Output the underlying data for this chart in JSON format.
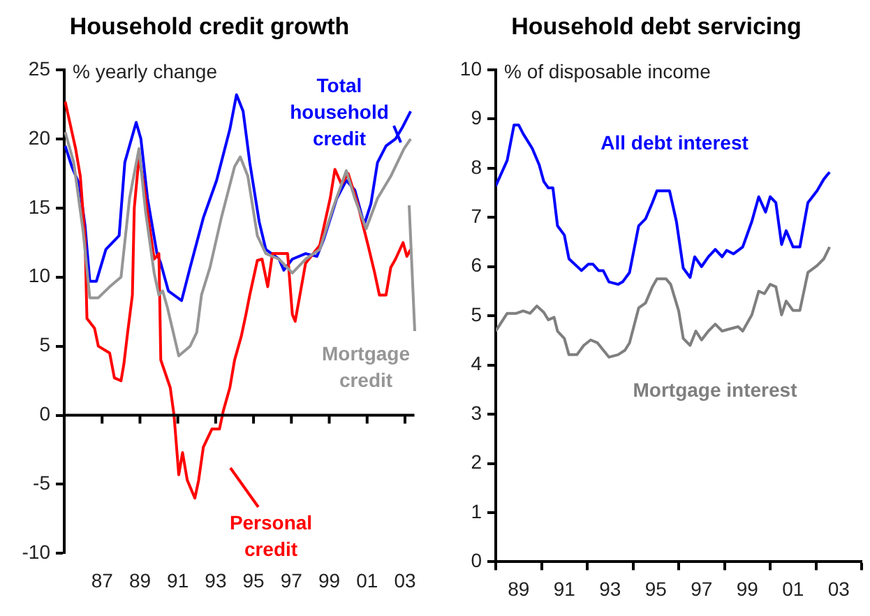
{
  "chart_data": [
    {
      "type": "line",
      "title": "Household credit growth",
      "ylabel": "% yearly change",
      "xlim": [
        1985,
        2003.5
      ],
      "ylim": [
        -10,
        25
      ],
      "yticks": [
        -10,
        -5,
        0,
        5,
        10,
        15,
        20,
        25
      ],
      "xticks": [
        {
          "value": 1987,
          "label": "87"
        },
        {
          "value": 1989,
          "label": "89"
        },
        {
          "value": 1991,
          "label": "91"
        },
        {
          "value": 1993,
          "label": "93"
        },
        {
          "value": 1995,
          "label": "95"
        },
        {
          "value": 1997,
          "label": "97"
        },
        {
          "value": 1999,
          "label": "99"
        },
        {
          "value": 2001,
          "label": "01"
        },
        {
          "value": 2003,
          "label": "03"
        }
      ],
      "grid": false,
      "ref_lines": [
        {
          "axis": "y",
          "value": 0,
          "color": "#000000"
        }
      ],
      "series": [
        {
          "name": "Mortgage credit",
          "color": "#969696",
          "x": [
            1985.05,
            1985.5,
            1986,
            1986.35,
            1986.8,
            1987.4,
            1988,
            1988.45,
            1988.95,
            1989.3,
            1989.75,
            1990,
            1990.2,
            1990.45,
            1991.05,
            1991.65,
            1992,
            1992.25,
            1992.7,
            1993.3,
            1994,
            1994.3,
            1994.7,
            1995.2,
            1995.65,
            1996.35,
            1997.05,
            1997.75,
            1998.5,
            1999.2,
            1999.9,
            2000.35,
            2000.95,
            2001.55,
            2002.25,
            2002.95,
            2003.3
          ],
          "values": [
            20.5,
            18.3,
            13.3,
            8.5,
            8.5,
            9.3,
            10,
            15.7,
            19.3,
            14.7,
            10.3,
            8.7,
            9,
            7.8,
            4.3,
            5,
            6,
            8.7,
            10.7,
            14.3,
            18,
            18.7,
            17.3,
            13,
            11.7,
            11.3,
            10.3,
            11.3,
            12,
            15,
            17.7,
            15.7,
            13.5,
            15.7,
            17.3,
            19.3,
            20
          ]
        },
        {
          "name": "Personal credit",
          "color": "#ff0000",
          "x": [
            1985.05,
            1985.6,
            1985.85,
            1986.1,
            1986.2,
            1986.6,
            1986.8,
            1987.4,
            1987.65,
            1988,
            1988.15,
            1988.35,
            1988.6,
            1988.7,
            1988.95,
            1989.2,
            1989.5,
            1989.75,
            1990,
            1990.05,
            1990.1,
            1990.6,
            1990.8,
            1991.05,
            1991.25,
            1991.5,
            1991.9,
            1992.1,
            1992.35,
            1992.8,
            1993.2,
            1993.4,
            1993.75,
            1994,
            1994.35,
            1994.6,
            1994.8,
            1995.2,
            1995.45,
            1995.75,
            1996,
            1996.8,
            1997.05,
            1997.2,
            1997.45,
            1997.75,
            1998.5,
            1999.05,
            1999.3,
            1999.65,
            2000,
            2000.5,
            2001.05,
            2001.4,
            2001.65,
            2002,
            2002.25,
            2002.5,
            2002.9,
            2003.1,
            2003.3
          ],
          "values": [
            22.7,
            19.3,
            17.3,
            12.7,
            7,
            6.3,
            5,
            4.5,
            2.7,
            2.5,
            3.7,
            6,
            8.7,
            15,
            18.7,
            16.7,
            13.7,
            11.3,
            11.7,
            8,
            4,
            2,
            0,
            -4.3,
            -2.7,
            -4.7,
            -6,
            -4.7,
            -2.3,
            -1,
            -1,
            0.3,
            2,
            4,
            5.7,
            7.3,
            8.7,
            11.2,
            11.3,
            9.3,
            11.7,
            11.7,
            7.3,
            6.8,
            8.7,
            11,
            12.3,
            15.7,
            17.8,
            16.7,
            17.5,
            15.3,
            12.3,
            10.3,
            8.7,
            8.7,
            10.7,
            11.3,
            12.5,
            11.5,
            12
          ]
        },
        {
          "name": "Total household credit",
          "color": "#0000ff",
          "x": [
            1985.05,
            1985.4,
            1985.8,
            1986.1,
            1986.35,
            1986.7,
            1987.2,
            1987.9,
            1988.2,
            1988.8,
            1989.05,
            1989.4,
            1989.9,
            1990.1,
            1990.5,
            1991.2,
            1991.65,
            1992.35,
            1993.05,
            1993.75,
            1994.1,
            1994.45,
            1994.8,
            1995.3,
            1995.65,
            1996.35,
            1996.6,
            1997.05,
            1997.75,
            1998.35,
            1998.7,
            1999.4,
            1999.9,
            2000.35,
            2000.85,
            2001.2,
            2001.55,
            2002,
            2002.5,
            2002.85,
            2003.3
          ],
          "values": [
            19.5,
            18,
            16.7,
            13.7,
            9.7,
            9.7,
            12,
            13,
            18.3,
            21.2,
            20,
            15.7,
            11.7,
            11,
            9,
            8.3,
            10.7,
            14.3,
            17,
            20.7,
            23.2,
            22,
            18.3,
            14,
            12,
            11.3,
            10.5,
            11.3,
            11.7,
            11.5,
            12.7,
            15.7,
            17,
            16.3,
            13.8,
            15.3,
            18.3,
            19.5,
            20,
            20.8,
            22
          ]
        }
      ]
    },
    {
      "type": "line",
      "title": "Household debt servicing",
      "ylabel": "% of disposable income",
      "xlim": [
        1988,
        2004
      ],
      "ylim": [
        0,
        10
      ],
      "yticks": [
        0,
        1,
        2,
        3,
        4,
        5,
        6,
        7,
        8,
        9,
        10
      ],
      "xticks": [
        {
          "value": 1988,
          "label": null
        },
        {
          "value": 1989,
          "label": "89"
        },
        {
          "value": 1990,
          "label": null
        },
        {
          "value": 1991,
          "label": "91"
        },
        {
          "value": 1992,
          "label": null
        },
        {
          "value": 1993,
          "label": "93"
        },
        {
          "value": 1994,
          "label": null
        },
        {
          "value": 1995,
          "label": "95"
        },
        {
          "value": 1996,
          "label": null
        },
        {
          "value": 1997,
          "label": "97"
        },
        {
          "value": 1998,
          "label": null
        },
        {
          "value": 1999,
          "label": "99"
        },
        {
          "value": 2000,
          "label": null
        },
        {
          "value": 2001,
          "label": "01"
        },
        {
          "value": 2002,
          "label": null
        },
        {
          "value": 2003,
          "label": "03"
        },
        {
          "value": 2004,
          "label": null
        }
      ],
      "grid": false,
      "series": [
        {
          "name": "Mortgage interest",
          "color": "#7f7f7f",
          "x": [
            1988,
            1988.5,
            1988.9,
            1989.2,
            1989.5,
            1989.8,
            1990.1,
            1990.3,
            1990.55,
            1990.7,
            1991,
            1991.2,
            1991.55,
            1991.85,
            1992.15,
            1992.45,
            1992.95,
            1993.35,
            1993.65,
            1993.85,
            1994.25,
            1994.55,
            1994.85,
            1995.05,
            1995.45,
            1995.65,
            1996,
            1996.2,
            1996.5,
            1996.75,
            1997,
            1997.3,
            1997.6,
            1997.9,
            1998.2,
            1998.6,
            1998.8,
            1999.2,
            1999.5,
            1999.75,
            2000,
            2000.25,
            2000.5,
            2000.7,
            2001,
            2001.3,
            2001.65,
            2002.05,
            2002.35,
            2002.6
          ],
          "values": [
            4.69,
            5.05,
            5.05,
            5.1,
            5.05,
            5.2,
            5.07,
            4.92,
            4.97,
            4.69,
            4.54,
            4.21,
            4.21,
            4.4,
            4.51,
            4.45,
            4.16,
            4.21,
            4.3,
            4.45,
            5.16,
            5.26,
            5.59,
            5.75,
            5.75,
            5.64,
            5.1,
            4.54,
            4.4,
            4.69,
            4.51,
            4.69,
            4.83,
            4.69,
            4.73,
            4.78,
            4.69,
            5.02,
            5.5,
            5.45,
            5.64,
            5.59,
            5.02,
            5.3,
            5.11,
            5.11,
            5.88,
            6.02,
            6.16,
            6.4
          ]
        },
        {
          "name": "All debt interest",
          "color": "#0000ff",
          "x": [
            1988,
            1988.5,
            1988.8,
            1989,
            1989.2,
            1989.4,
            1989.6,
            1989.9,
            1990.1,
            1990.3,
            1990.5,
            1990.7,
            1991,
            1991.2,
            1991.75,
            1992.05,
            1992.25,
            1992.5,
            1992.7,
            1992.95,
            1993.35,
            1993.55,
            1993.85,
            1994.25,
            1994.55,
            1994.85,
            1995.05,
            1995.6,
            1995.9,
            1996.2,
            1996.5,
            1996.7,
            1997,
            1997.3,
            1997.6,
            1997.9,
            1998.1,
            1998.4,
            1998.8,
            1999.2,
            1999.5,
            1999.8,
            2000,
            2000.25,
            2000.5,
            2000.7,
            2001,
            2001.3,
            2001.65,
            2002.05,
            2002.35,
            2002.6
          ],
          "values": [
            7.64,
            8.16,
            8.88,
            8.88,
            8.7,
            8.55,
            8.4,
            8.07,
            7.73,
            7.6,
            7.6,
            6.83,
            6.64,
            6.16,
            5.92,
            6.05,
            6.05,
            5.92,
            5.92,
            5.69,
            5.64,
            5.69,
            5.88,
            6.83,
            6.97,
            7.3,
            7.54,
            7.54,
            6.92,
            5.97,
            5.78,
            6.2,
            6,
            6.2,
            6.35,
            6.2,
            6.33,
            6.26,
            6.4,
            6.92,
            7.42,
            7.11,
            7.42,
            7.3,
            6.45,
            6.73,
            6.4,
            6.4,
            7.3,
            7.54,
            7.78,
            7.92
          ]
        }
      ]
    }
  ]
}
